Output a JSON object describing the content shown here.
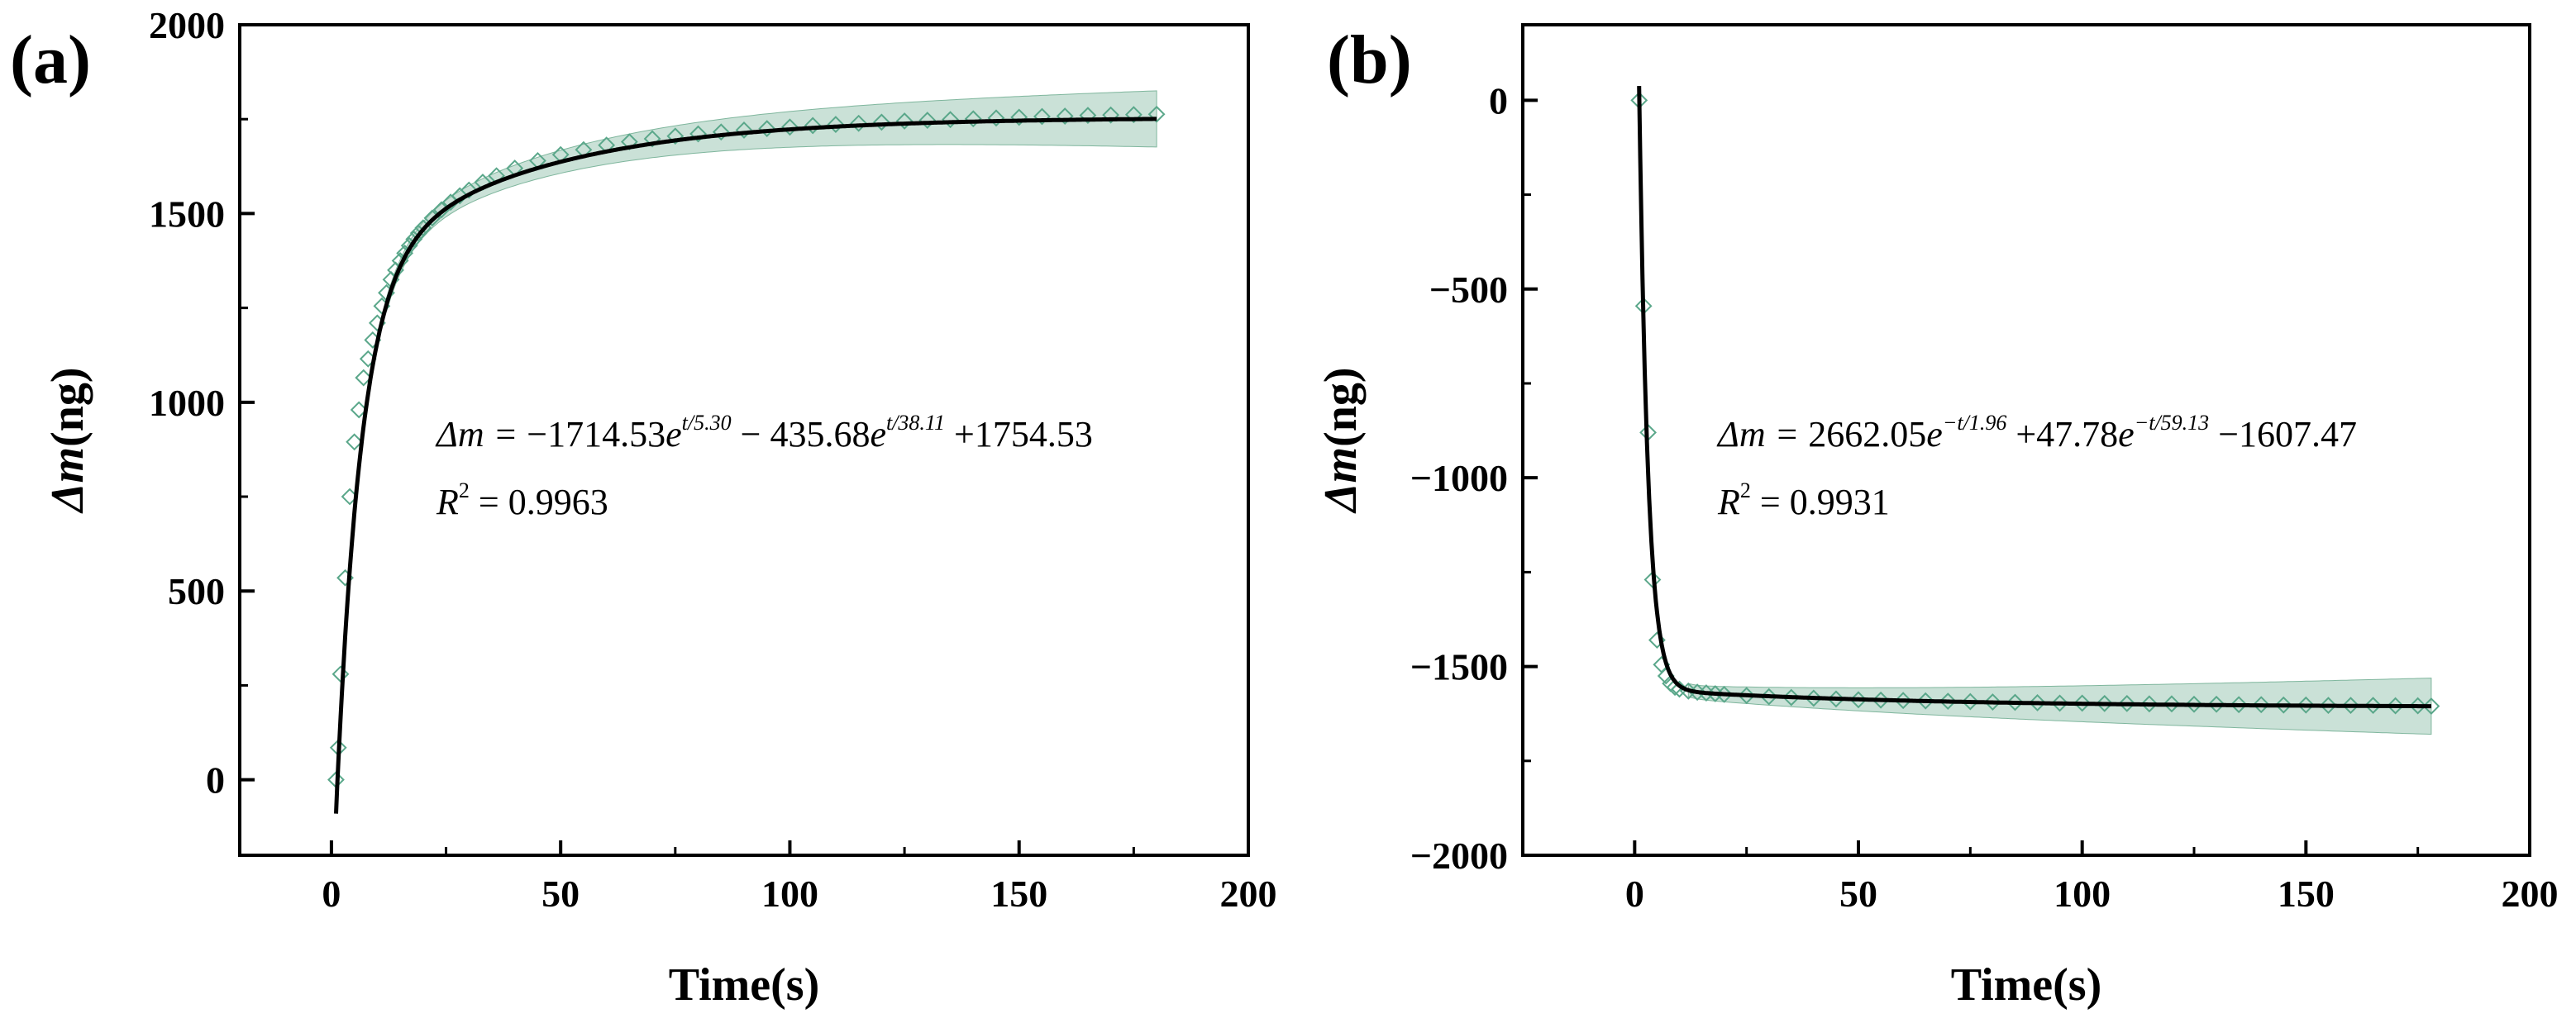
{
  "chart_data": [
    {
      "type": "scatter",
      "panel_label": "(a)",
      "xlabel": "Time(s)",
      "ylabel_symbol": "Δm",
      "ylabel_unit": "(ng)",
      "xlim": [
        -20,
        200
      ],
      "ylim": [
        -200,
        2000
      ],
      "x_ticks": [
        0,
        50,
        100,
        150,
        200
      ],
      "y_ticks": [
        0,
        500,
        1000,
        1500,
        2000
      ],
      "equation": {
        "lhs": "Δm = ",
        "t1": {
          "coef": "−1714.53",
          "base": "e",
          "exp": "t/5.30"
        },
        "op2": " − ",
        "t2": {
          "coef": "435.68",
          "base": "e",
          "exp": "t/38.11"
        },
        "tail": " +1754.53"
      },
      "r_squared": {
        "lhs": "R",
        "sup": "2",
        "rhs": " = 0.9963"
      },
      "series": [
        {
          "name": "measured",
          "marker": "diamond",
          "color": "#5aa78a",
          "x": [
            1,
            1.5,
            2,
            3,
            4,
            5,
            6,
            7,
            8,
            9,
            10,
            11,
            12,
            13,
            14,
            15,
            16,
            17,
            18,
            19,
            20,
            22,
            24,
            26,
            28,
            30,
            33,
            36,
            40,
            45,
            50,
            55,
            60,
            65,
            70,
            75,
            80,
            85,
            90,
            95,
            100,
            105,
            110,
            115,
            120,
            125,
            130,
            135,
            140,
            145,
            150,
            155,
            160,
            165,
            170,
            175,
            180
          ],
          "y": [
            0,
            85,
            280,
            535,
            750,
            895,
            980,
            1065,
            1115,
            1165,
            1210,
            1255,
            1290,
            1325,
            1350,
            1375,
            1395,
            1415,
            1432,
            1448,
            1462,
            1488,
            1510,
            1530,
            1547,
            1562,
            1583,
            1600,
            1620,
            1640,
            1656,
            1669,
            1681,
            1690,
            1698,
            1705,
            1711,
            1716,
            1721,
            1725,
            1729,
            1733,
            1736,
            1739,
            1742,
            1745,
            1747,
            1749,
            1751,
            1753,
            1755,
            1757,
            1758,
            1760,
            1761,
            1762,
            1763
          ]
        },
        {
          "name": "fit",
          "line": true,
          "color": "#000000",
          "x_start": 1,
          "x_end": 180
        }
      ]
    },
    {
      "type": "scatter",
      "panel_label": "(b)",
      "xlabel": "Time(s)",
      "ylabel_symbol": "Δm",
      "ylabel_unit": "(ng)",
      "xlim": [
        -25,
        200
      ],
      "ylim": [
        -2000,
        200
      ],
      "x_ticks": [
        0,
        50,
        100,
        150,
        200
      ],
      "y_ticks": [
        0,
        -500,
        -1000,
        -1500,
        -2000
      ],
      "equation": {
        "lhs": "Δm = ",
        "t1": {
          "coef": "2662.05",
          "base": "e",
          "exp": "−t/1.96"
        },
        "op2": " +",
        "t2": {
          "coef": "47.78",
          "base": "e",
          "exp": "−t/59.13"
        },
        "tail": " −1607.47"
      },
      "r_squared": {
        "lhs": "R",
        "sup": "2",
        "rhs": " = 0.9931"
      },
      "series": [
        {
          "name": "measured",
          "marker": "diamond",
          "color": "#5aa78a",
          "x": [
            1,
            2,
            3,
            4,
            5,
            6,
            7,
            8,
            9,
            10,
            12,
            14,
            16,
            18,
            20,
            25,
            30,
            35,
            40,
            45,
            50,
            55,
            60,
            65,
            70,
            75,
            80,
            85,
            90,
            95,
            100,
            105,
            110,
            115,
            120,
            125,
            130,
            135,
            140,
            145,
            150,
            155,
            160,
            165,
            170,
            175,
            178
          ],
          "y": [
            0,
            -545,
            -880,
            -1270,
            -1430,
            -1495,
            -1525,
            -1545,
            -1555,
            -1560,
            -1565,
            -1568,
            -1570,
            -1572,
            -1574,
            -1577,
            -1580,
            -1582,
            -1584,
            -1586,
            -1588,
            -1589,
            -1590,
            -1591,
            -1592,
            -1593,
            -1594,
            -1595,
            -1596,
            -1597,
            -1597,
            -1598,
            -1598,
            -1599,
            -1599,
            -1600,
            -1600,
            -1601,
            -1601,
            -1602,
            -1602,
            -1603,
            -1603,
            -1603,
            -1604,
            -1604,
            -1605
          ]
        },
        {
          "name": "fit",
          "line": true,
          "color": "#000000",
          "x_start": 1,
          "x_end": 178
        }
      ]
    }
  ]
}
